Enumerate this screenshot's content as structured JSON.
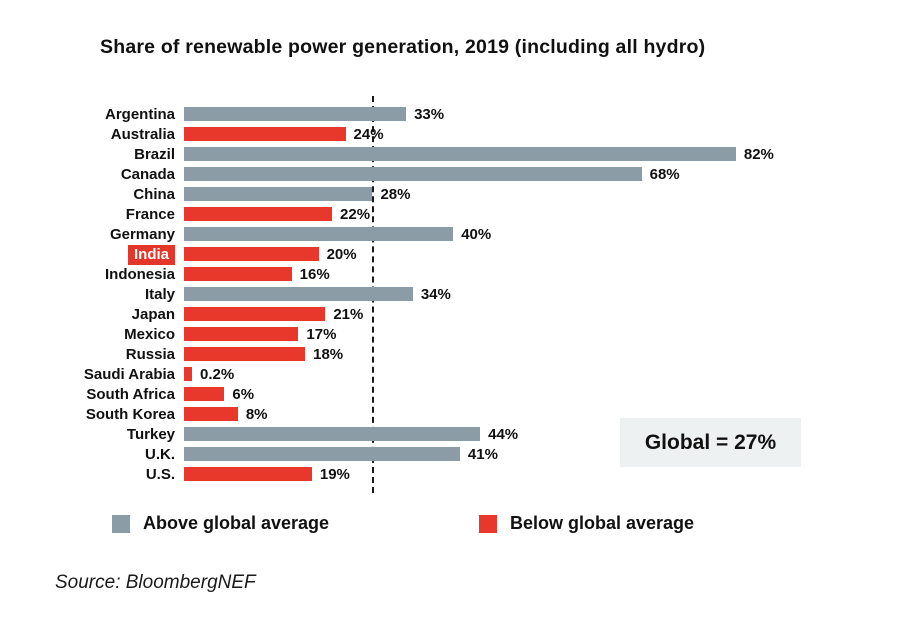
{
  "title": "Share of renewable power generation, 2019 (including all hydro)",
  "legend": {
    "above_label": "Above global average",
    "below_label": "Below global average"
  },
  "global_box_label": "Global = 27%",
  "source": "Source: BloombergNEF",
  "colors": {
    "above": "#8b9ca6",
    "below": "#e8372b",
    "highlight_bg": "#e4372c",
    "global_box_bg": "#eef1f1"
  },
  "chart_data": {
    "type": "bar",
    "orientation": "horizontal",
    "title": "Share of renewable power generation, 2019 (including all hydro)",
    "categories": [
      "Argentina",
      "Australia",
      "Brazil",
      "Canada",
      "China",
      "France",
      "Germany",
      "India",
      "Indonesia",
      "Italy",
      "Japan",
      "Mexico",
      "Russia",
      "Saudi Arabia",
      "South Africa",
      "South Korea",
      "Turkey",
      "U.K.",
      "U.S."
    ],
    "values": [
      33,
      24,
      82,
      68,
      28,
      22,
      40,
      20,
      16,
      34,
      21,
      17,
      18,
      0.2,
      6,
      8,
      44,
      41,
      19
    ],
    "value_labels": [
      "33%",
      "24%",
      "82%",
      "68%",
      "28%",
      "22%",
      "40%",
      "20%",
      "16%",
      "34%",
      "21%",
      "17%",
      "18%",
      "0.2%",
      "6%",
      "8%",
      "44%",
      "41%",
      "19%"
    ],
    "global_average": 27,
    "global_average_label": "Global = 27%",
    "highlighted_category": "India",
    "legend": [
      "Above global average",
      "Below global average"
    ],
    "legend_position": "bottom",
    "grid": false,
    "xlim": [
      0,
      90
    ],
    "reference_line": {
      "value": 27,
      "style": "dashed",
      "color": "#1a1a1a"
    },
    "series_coloring": "gray if value >= global average, red if below",
    "source": "Source: BloombergNEF"
  }
}
